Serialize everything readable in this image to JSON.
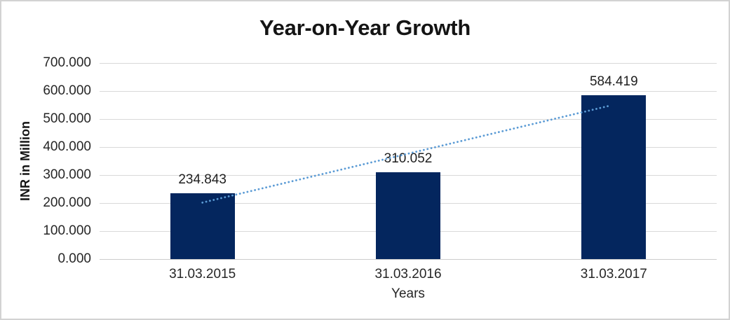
{
  "chart_data": {
    "type": "bar",
    "title": "Year-on-Year Growth",
    "categories": [
      "31.03.2015",
      "31.03.2016",
      "31.03.2017"
    ],
    "values": [
      234.843,
      310.052,
      584.419
    ],
    "data_labels": [
      "234.843",
      "310.052",
      "584.419"
    ],
    "xlabel": "Years",
    "ylabel": "INR in Million",
    "ylim": [
      0,
      700
    ],
    "ytick_labels": [
      "700.000",
      "600.000",
      "500.000",
      "400.000",
      "300.000",
      "200.000",
      "100.000",
      "0.000"
    ],
    "grid": true,
    "legend": "none",
    "trendline": {
      "type": "linear",
      "style": "dotted"
    },
    "colors": {
      "bar": "#04265e",
      "trendline": "#5b9bd5",
      "gridline": "#d9d9d9",
      "axis_line": "#cccccc",
      "text": "#262626"
    }
  }
}
